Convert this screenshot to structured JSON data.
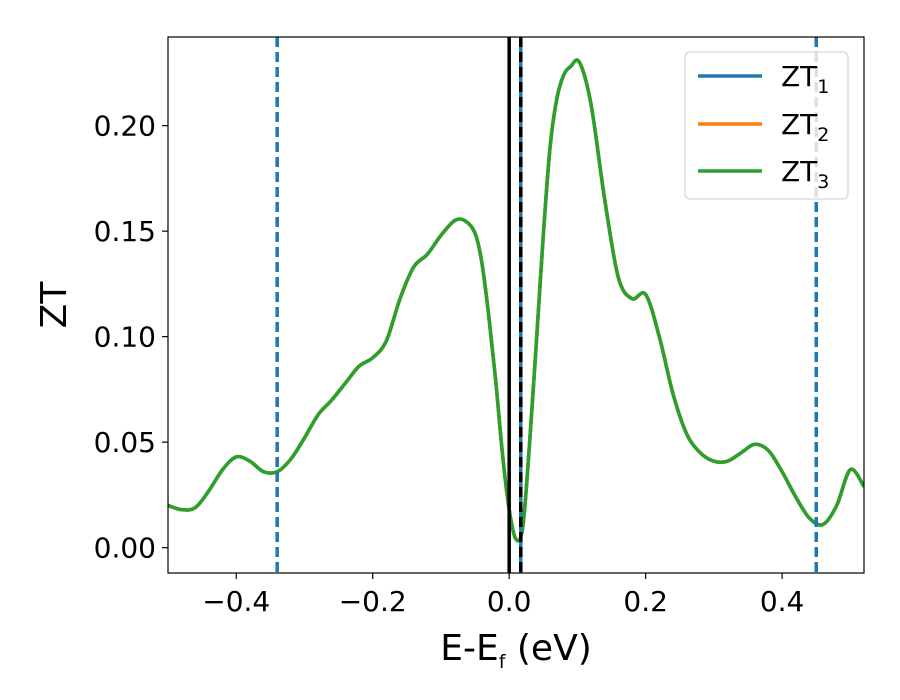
{
  "chart_data": {
    "type": "line",
    "xlabel": {
      "main": "E-E",
      "sub": "f",
      "unit": " (eV)"
    },
    "ylabel": "ZT",
    "xlim": [
      -0.5,
      0.52
    ],
    "ylim": [
      -0.012,
      0.242
    ],
    "xticks": [
      -0.4,
      -0.2,
      0.0,
      0.2,
      0.4
    ],
    "xtick_labels": [
      "−0.4",
      "−0.2",
      "0.0",
      "0.2",
      "0.4"
    ],
    "yticks": [
      0.0,
      0.05,
      0.1,
      0.15,
      0.2
    ],
    "ytick_labels": [
      "0.00",
      "0.05",
      "0.10",
      "0.15",
      "0.20"
    ],
    "grid": false,
    "legend_position": "top-right",
    "series": [
      {
        "name": "ZT",
        "sub": "1",
        "color": "#1f77b4"
      },
      {
        "name": "ZT",
        "sub": "2",
        "color": "#ff7f0e"
      },
      {
        "name": "ZT",
        "sub": "3",
        "color": "#2ca02c"
      }
    ],
    "x": [
      -0.5,
      -0.48,
      -0.46,
      -0.44,
      -0.42,
      -0.4,
      -0.38,
      -0.36,
      -0.34,
      -0.32,
      -0.3,
      -0.28,
      -0.26,
      -0.24,
      -0.22,
      -0.2,
      -0.18,
      -0.16,
      -0.14,
      -0.12,
      -0.1,
      -0.08,
      -0.065,
      -0.05,
      -0.04,
      -0.03,
      -0.02,
      -0.01,
      0.0,
      0.01,
      0.02,
      0.03,
      0.04,
      0.05,
      0.06,
      0.07,
      0.08,
      0.09,
      0.103,
      0.12,
      0.14,
      0.16,
      0.18,
      0.2,
      0.22,
      0.24,
      0.26,
      0.28,
      0.3,
      0.32,
      0.34,
      0.36,
      0.38,
      0.4,
      0.42,
      0.44,
      0.46,
      0.48,
      0.5,
      0.52
    ],
    "y": [
      0.02,
      0.018,
      0.019,
      0.027,
      0.037,
      0.043,
      0.041,
      0.036,
      0.036,
      0.042,
      0.052,
      0.063,
      0.07,
      0.078,
      0.086,
      0.09,
      0.098,
      0.118,
      0.133,
      0.139,
      0.148,
      0.155,
      0.155,
      0.149,
      0.135,
      0.11,
      0.08,
      0.045,
      0.018,
      0.004,
      0.01,
      0.05,
      0.098,
      0.148,
      0.19,
      0.213,
      0.224,
      0.228,
      0.23,
      0.21,
      0.165,
      0.128,
      0.118,
      0.12,
      0.1,
      0.073,
      0.054,
      0.045,
      0.041,
      0.041,
      0.045,
      0.049,
      0.046,
      0.036,
      0.024,
      0.014,
      0.011,
      0.02,
      0.037,
      0.029
    ],
    "vlines": [
      {
        "x": -0.34,
        "color": "#1f77b4",
        "style": "dashed"
      },
      {
        "x": 0.0,
        "color": "#000000",
        "style": "solid"
      },
      {
        "x": 0.017,
        "color": "#1f77b4",
        "style": "solid"
      },
      {
        "x": 0.017,
        "color": "#000000",
        "style": "dashed"
      },
      {
        "x": 0.45,
        "color": "#1f77b4",
        "style": "dashed"
      }
    ]
  }
}
